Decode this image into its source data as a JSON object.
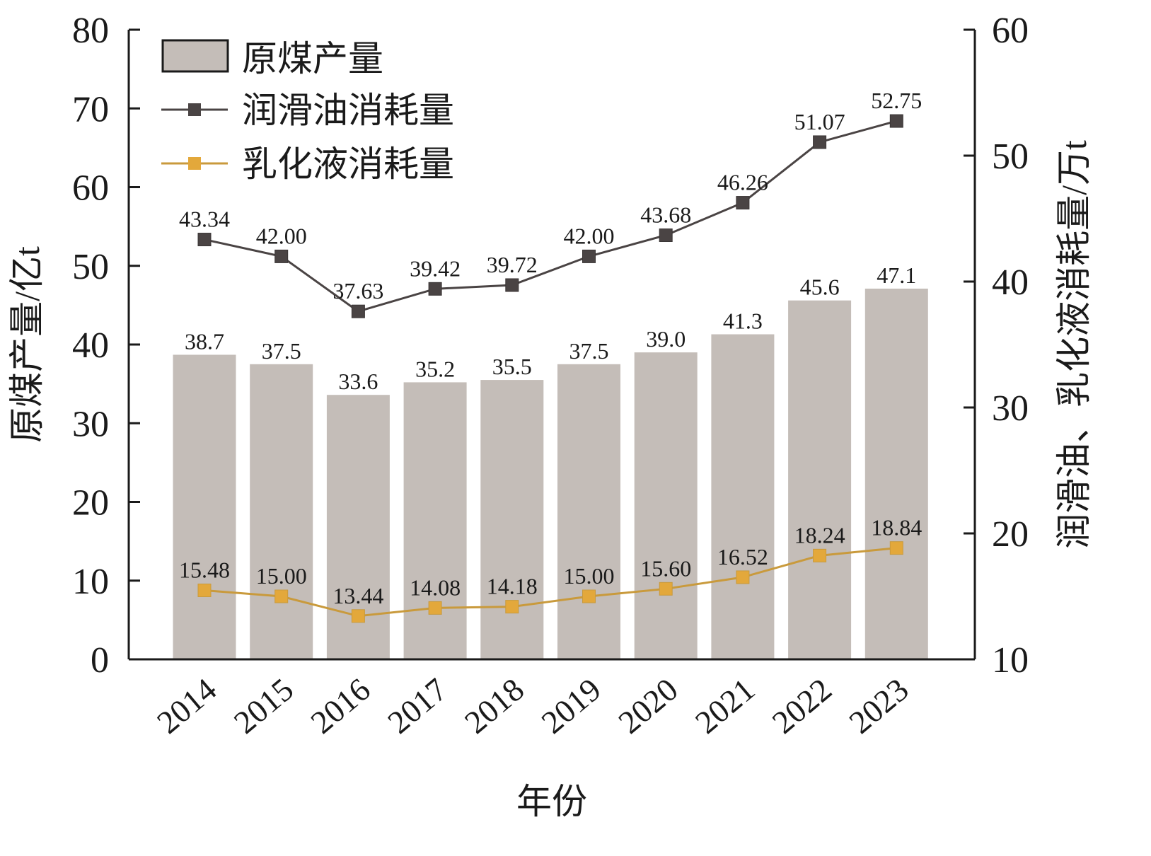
{
  "chart_data": {
    "type": "bar",
    "categories": [
      "2014",
      "2015",
      "2016",
      "2017",
      "2018",
      "2019",
      "2020",
      "2021",
      "2022",
      "2023"
    ],
    "xlabel": "年份",
    "ylabel_left": "原煤产量/亿t",
    "ylabel_right": "润滑油、乳化液消耗量/万t",
    "ylim_left": [
      0,
      80
    ],
    "ylim_right": [
      10,
      60
    ],
    "yticks_left": [
      "0",
      "10",
      "20",
      "30",
      "40",
      "50",
      "60",
      "70",
      "80"
    ],
    "yticks_right": [
      "10",
      "20",
      "30",
      "40",
      "50",
      "60"
    ],
    "grid": false,
    "legend_position": "top-left",
    "series": [
      {
        "name": "原煤产量",
        "kind": "bar",
        "axis": "left",
        "color": "#c4bdb8",
        "values": [
          38.7,
          37.5,
          33.6,
          35.2,
          35.5,
          37.5,
          39.0,
          41.3,
          45.6,
          47.1
        ],
        "labels": [
          "38.7",
          "37.5",
          "33.6",
          "35.2",
          "35.5",
          "37.5",
          "39.0",
          "41.3",
          "45.6",
          "47.1"
        ]
      },
      {
        "name": "润滑油消耗量",
        "kind": "line",
        "axis": "right",
        "color": "#4a4444",
        "values": [
          43.34,
          42.0,
          37.63,
          39.42,
          39.72,
          42.0,
          43.68,
          46.26,
          51.07,
          52.75
        ],
        "labels": [
          "43.34",
          "42.00",
          "37.63",
          "39.42",
          "39.72",
          "42.00",
          "43.68",
          "46.26",
          "51.07",
          "52.75"
        ]
      },
      {
        "name": "乳化液消耗量",
        "kind": "line",
        "axis": "right",
        "color": "#e3a83b",
        "line_color": "#c99a3c",
        "values": [
          15.48,
          15.0,
          13.44,
          14.08,
          14.18,
          15.0,
          15.6,
          16.52,
          18.24,
          18.84
        ],
        "labels": [
          "15.48",
          "15.00",
          "13.44",
          "14.08",
          "14.18",
          "15.00",
          "15.60",
          "16.52",
          "18.24",
          "18.84"
        ]
      }
    ]
  }
}
